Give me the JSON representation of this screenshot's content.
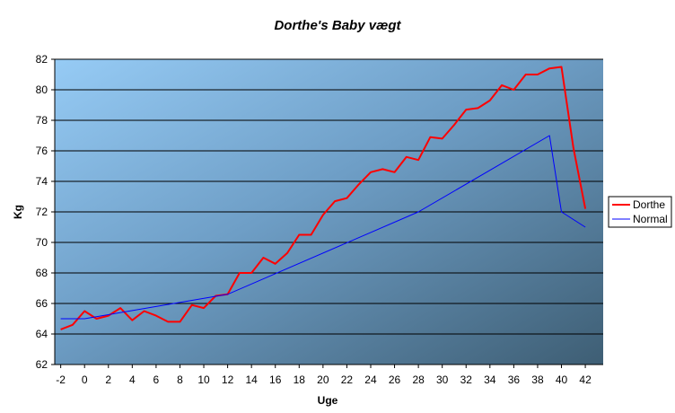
{
  "chart_data": {
    "type": "line",
    "title": "Dorthe's Baby vægt",
    "xlabel": "Uge",
    "ylabel": "Kg",
    "xlim": [
      -2.5,
      43.5
    ],
    "ylim": [
      62,
      82
    ],
    "x_ticks": [
      -2,
      0,
      2,
      4,
      6,
      8,
      10,
      12,
      14,
      16,
      18,
      20,
      22,
      24,
      26,
      28,
      30,
      32,
      34,
      36,
      38,
      40,
      42
    ],
    "y_ticks": [
      62,
      64,
      66,
      68,
      70,
      72,
      74,
      76,
      78,
      80,
      82
    ],
    "grid": true,
    "legend_position": "right",
    "series": [
      {
        "name": "Dorthe",
        "color": "#ff0000",
        "x": [
          -2,
          -1,
          0,
          1,
          2,
          3,
          4,
          5,
          6,
          7,
          8,
          9,
          10,
          11,
          12,
          13,
          14,
          15,
          16,
          17,
          18,
          19,
          20,
          21,
          22,
          23,
          24,
          25,
          26,
          27,
          28,
          29,
          30,
          31,
          32,
          33,
          34,
          35,
          36,
          37,
          38,
          39,
          40,
          41,
          42
        ],
        "y": [
          64.3,
          64.6,
          65.5,
          65.0,
          65.2,
          65.7,
          64.9,
          65.5,
          65.2,
          64.8,
          64.8,
          65.9,
          65.7,
          66.5,
          66.6,
          68.0,
          68.0,
          69.0,
          68.6,
          69.3,
          70.5,
          70.5,
          71.8,
          72.7,
          72.9,
          73.8,
          74.6,
          74.8,
          74.6,
          75.6,
          75.4,
          76.9,
          76.8,
          77.7,
          78.7,
          78.8,
          79.3,
          80.3,
          80.0,
          81.0,
          81.0,
          81.4,
          81.5,
          76.2,
          72.2
        ]
      },
      {
        "name": "Normal",
        "color": "#0000ff",
        "x": [
          -2,
          0,
          12,
          28,
          39,
          40,
          42
        ],
        "y": [
          65.0,
          65.0,
          66.6,
          72.0,
          77.0,
          72.0,
          71.0
        ]
      }
    ]
  }
}
